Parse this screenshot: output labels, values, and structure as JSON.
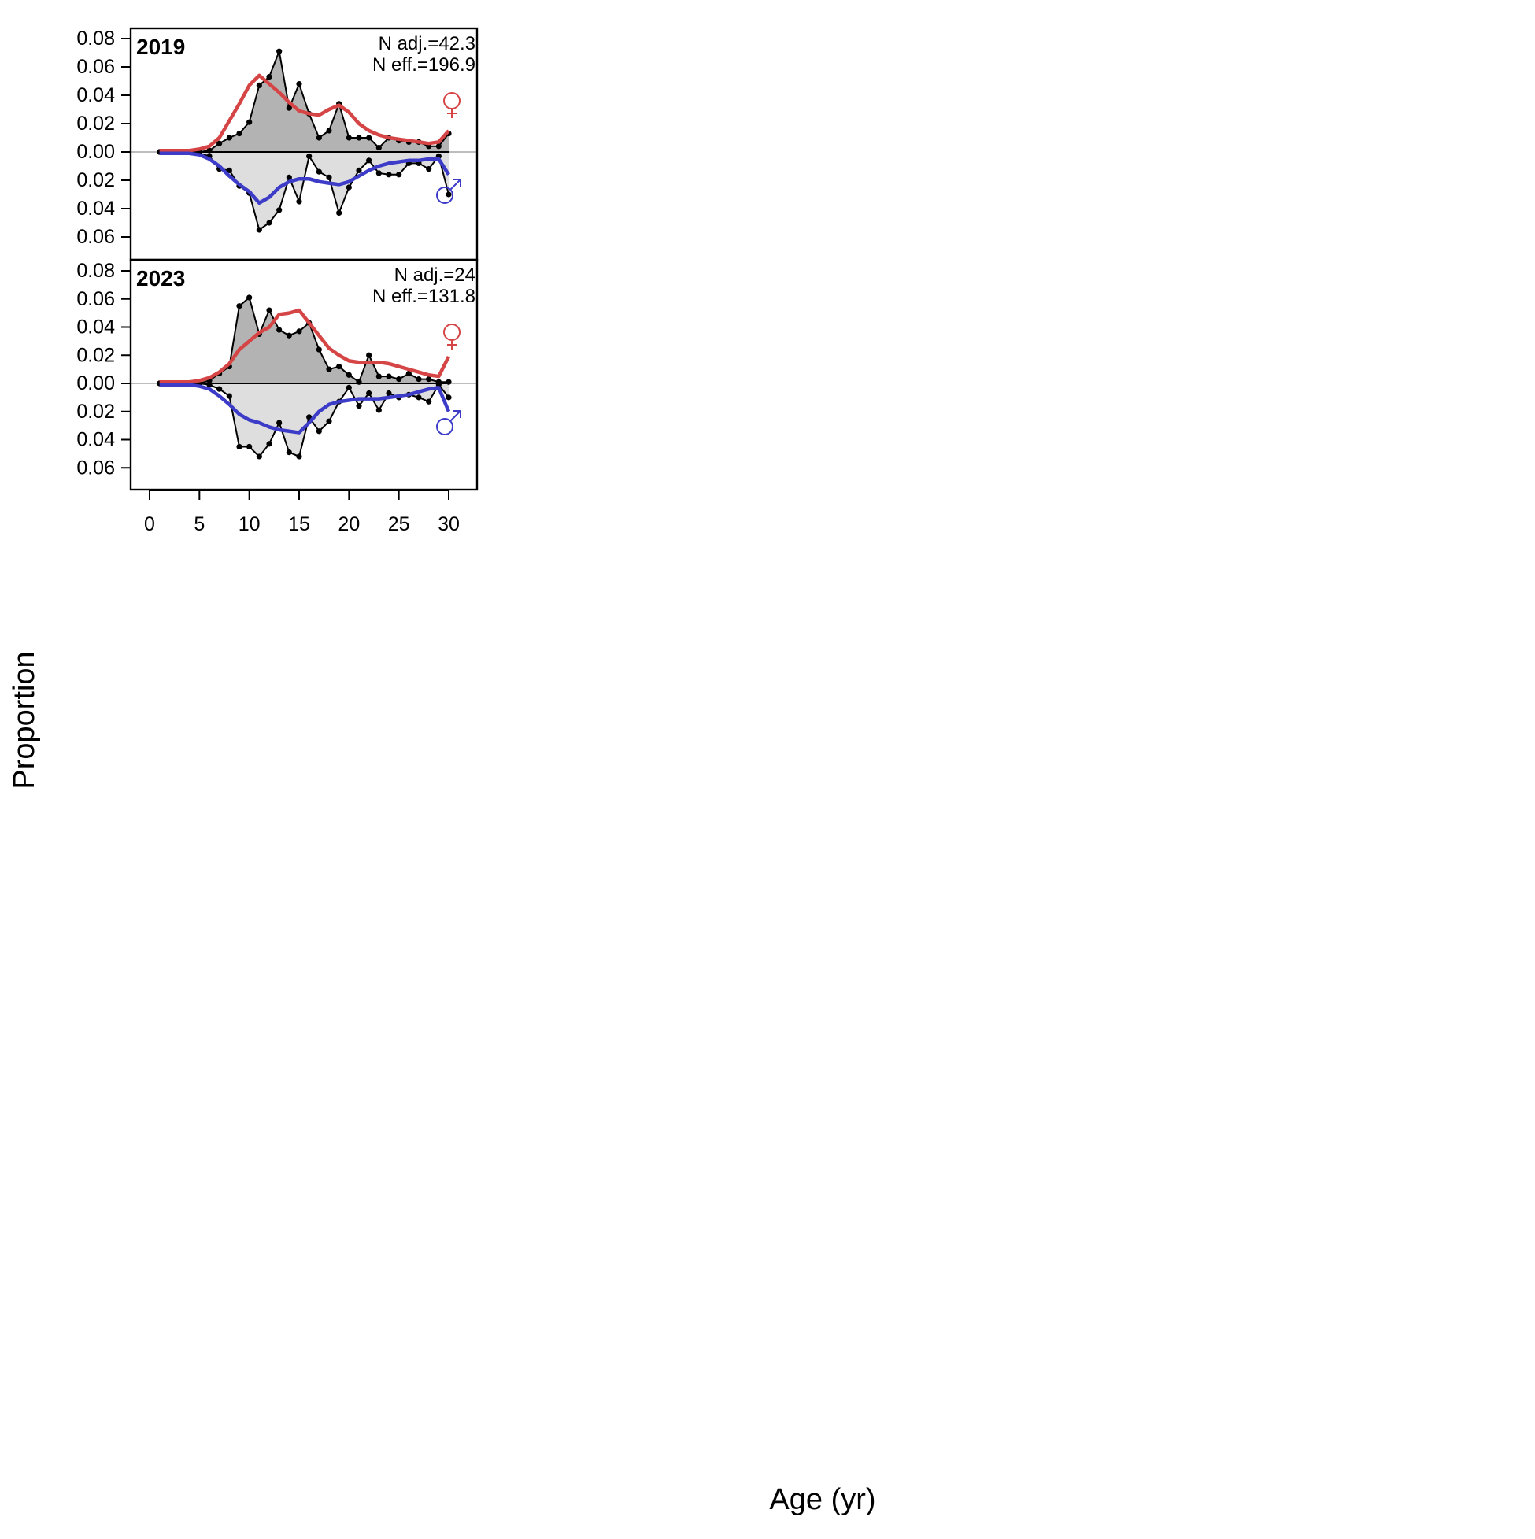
{
  "figure": {
    "xlabel": "Age (yr)",
    "ylabel": "Proportion"
  },
  "colors": {
    "female_expected": "#d64545",
    "male_expected": "#3c3cc8",
    "female_fill": "#b3b3b3",
    "male_fill": "#dedede",
    "observed_line": "#000000",
    "zero_line": "#000000",
    "grid_zero": "#bdbdbd"
  },
  "icons": {
    "female": "female-sign-icon",
    "male": "male-sign-icon"
  },
  "chart_data": {
    "type": "line",
    "xlabel": "Age (yr)",
    "ylabel": "Proportion",
    "xlim": [
      0,
      33
    ],
    "x_ticks": [
      "0",
      "5",
      "10",
      "15",
      "20",
      "25",
      "30"
    ],
    "panels": [
      {
        "year": "2019",
        "n_adj": "N adj.=42.3",
        "n_eff": "N eff.=196.9",
        "ylim": [
          -0.078,
          0.086
        ],
        "y_ticks_upper": [
          "0.08",
          "0.06",
          "0.04",
          "0.02",
          "0.00"
        ],
        "y_ticks_lower": [
          "0.02",
          "0.04",
          "0.06"
        ],
        "ages": [
          1,
          2,
          3,
          4,
          5,
          6,
          7,
          8,
          9,
          10,
          11,
          12,
          13,
          14,
          15,
          16,
          17,
          18,
          19,
          20,
          21,
          22,
          23,
          24,
          25,
          26,
          27,
          28,
          29,
          30
        ],
        "series": [
          {
            "name": "female observed",
            "values": [
              0,
              0,
              0,
              0,
              0,
              0.001,
              0.006,
              0.01,
              0.013,
              0.021,
              0.047,
              0.053,
              0.071,
              0.031,
              0.048,
              0.027,
              0.01,
              0.015,
              0.034,
              0.01,
              0.01,
              0.01,
              0.003,
              0.01,
              0.008,
              0.007,
              0.007,
              0.004,
              0.004,
              0.013
            ]
          },
          {
            "name": "female expected",
            "values": [
              0.001,
              0.001,
              0.001,
              0.001,
              0.002,
              0.004,
              0.01,
              0.022,
              0.034,
              0.047,
              0.054,
              0.048,
              0.042,
              0.035,
              0.029,
              0.027,
              0.026,
              0.03,
              0.033,
              0.028,
              0.02,
              0.015,
              0.012,
              0.01,
              0.009,
              0.008,
              0.007,
              0.006,
              0.007,
              0.015
            ]
          },
          {
            "name": "male observed",
            "values": [
              0,
              0,
              0,
              0,
              -0.001,
              -0.003,
              -0.012,
              -0.013,
              -0.024,
              -0.029,
              -0.055,
              -0.05,
              -0.041,
              -0.018,
              -0.035,
              -0.003,
              -0.014,
              -0.018,
              -0.043,
              -0.025,
              -0.013,
              -0.006,
              -0.015,
              -0.016,
              -0.016,
              -0.008,
              -0.008,
              -0.012,
              -0.003,
              -0.03
            ]
          },
          {
            "name": "male expected",
            "values": [
              -0.001,
              -0.001,
              -0.001,
              -0.001,
              -0.002,
              -0.005,
              -0.01,
              -0.017,
              -0.023,
              -0.028,
              -0.036,
              -0.032,
              -0.025,
              -0.021,
              -0.019,
              -0.019,
              -0.021,
              -0.022,
              -0.023,
              -0.021,
              -0.017,
              -0.013,
              -0.01,
              -0.008,
              -0.007,
              -0.006,
              -0.006,
              -0.005,
              -0.005,
              -0.016
            ]
          }
        ]
      },
      {
        "year": "2023",
        "n_adj": "N adj.=24",
        "n_eff": "N eff.=131.8",
        "ylim": [
          -0.078,
          0.086
        ],
        "y_ticks_upper": [
          "0.08",
          "0.06",
          "0.04",
          "0.02",
          "0.00"
        ],
        "y_ticks_lower": [
          "0.02",
          "0.04",
          "0.06"
        ],
        "ages": [
          1,
          2,
          3,
          4,
          5,
          6,
          7,
          8,
          9,
          10,
          11,
          12,
          13,
          14,
          15,
          16,
          17,
          18,
          19,
          20,
          21,
          22,
          23,
          24,
          25,
          26,
          27,
          28,
          29,
          30
        ],
        "series": [
          {
            "name": "female observed",
            "values": [
              0,
              0,
              0,
              0,
              0,
              0.002,
              0.007,
              0.012,
              0.055,
              0.061,
              0.035,
              0.052,
              0.038,
              0.034,
              0.037,
              0.043,
              0.024,
              0.01,
              0.012,
              0.006,
              0.001,
              0.02,
              0.005,
              0.005,
              0.003,
              0.007,
              0.003,
              0.003,
              0.001,
              0.001
            ]
          },
          {
            "name": "female expected",
            "values": [
              0.001,
              0.001,
              0.001,
              0.001,
              0.002,
              0.004,
              0.008,
              0.014,
              0.024,
              0.03,
              0.036,
              0.04,
              0.049,
              0.05,
              0.052,
              0.043,
              0.034,
              0.025,
              0.02,
              0.016,
              0.015,
              0.015,
              0.015,
              0.014,
              0.012,
              0.01,
              0.008,
              0.006,
              0.005,
              0.019
            ]
          },
          {
            "name": "male observed",
            "values": [
              0,
              0,
              0,
              0,
              0,
              -0.001,
              -0.004,
              -0.009,
              -0.045,
              -0.045,
              -0.052,
              -0.043,
              -0.028,
              -0.049,
              -0.052,
              -0.024,
              -0.034,
              -0.027,
              -0.013,
              -0.003,
              -0.016,
              -0.007,
              -0.019,
              -0.007,
              -0.01,
              -0.008,
              -0.01,
              -0.013,
              -0.001,
              -0.01
            ]
          },
          {
            "name": "male expected",
            "values": [
              -0.001,
              -0.001,
              -0.001,
              -0.001,
              -0.002,
              -0.004,
              -0.009,
              -0.015,
              -0.022,
              -0.026,
              -0.028,
              -0.031,
              -0.033,
              -0.034,
              -0.035,
              -0.028,
              -0.02,
              -0.015,
              -0.013,
              -0.012,
              -0.011,
              -0.011,
              -0.011,
              -0.01,
              -0.009,
              -0.008,
              -0.006,
              -0.004,
              -0.003,
              -0.02
            ]
          }
        ]
      }
    ]
  }
}
